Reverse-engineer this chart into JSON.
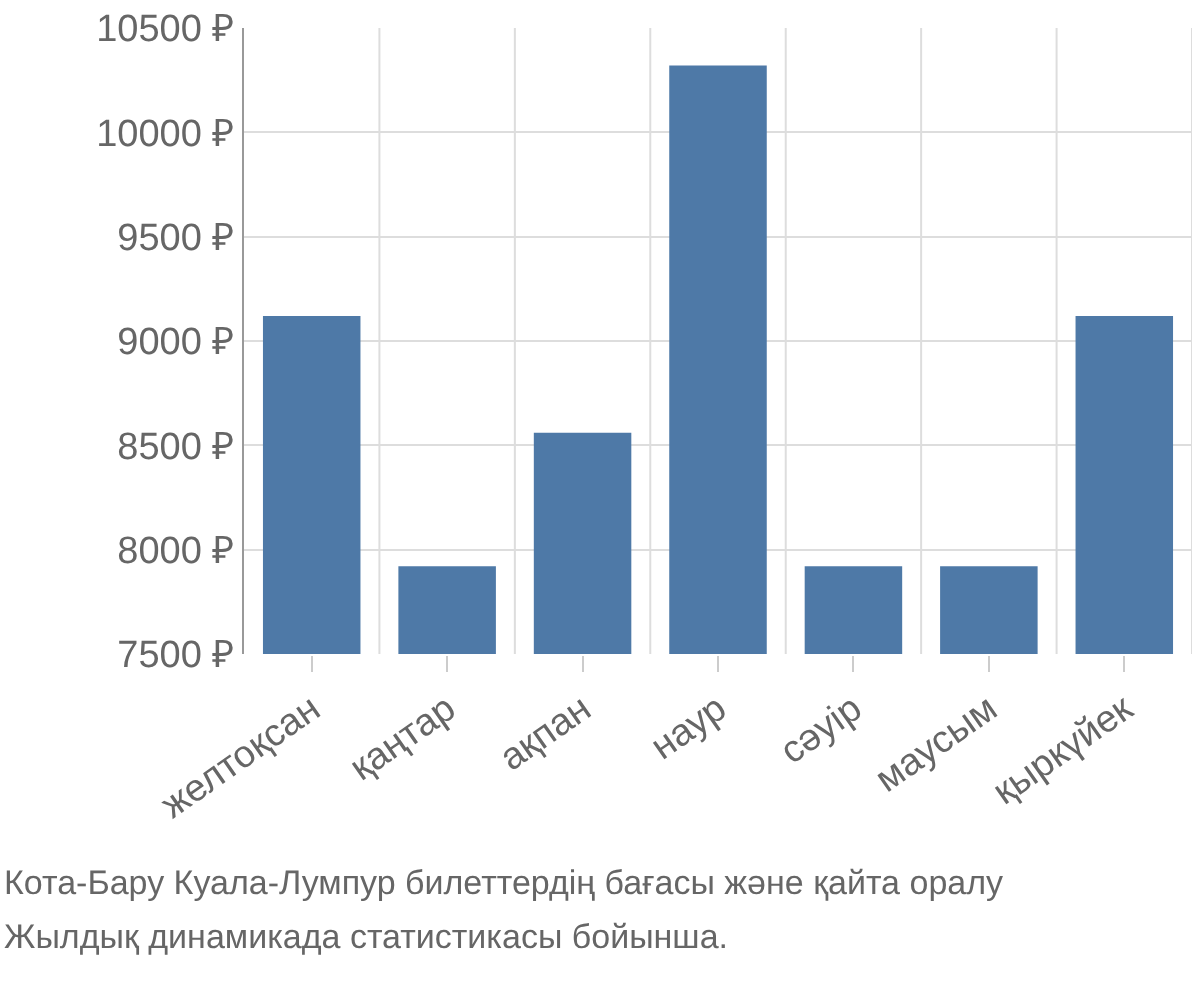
{
  "chart_data": {
    "type": "bar",
    "categories": [
      "желтоқсан",
      "қаңтар",
      "ақпан",
      "наур",
      "сәуір",
      "маусым",
      "қыркүйек"
    ],
    "values": [
      9120,
      7920,
      8560,
      10320,
      7920,
      7920,
      9120
    ],
    "color": "#4e79a7",
    "ylim": [
      7500,
      10500
    ],
    "yticks": [
      {
        "value": 7500,
        "label": "7500 ₽"
      },
      {
        "value": 8000,
        "label": "8000 ₽"
      },
      {
        "value": 8500,
        "label": "8500 ₽"
      },
      {
        "value": 9000,
        "label": "9000 ₽"
      },
      {
        "value": 9500,
        "label": "9500 ₽"
      },
      {
        "value": 10000,
        "label": "10000 ₽"
      },
      {
        "value": 10500,
        "label": "10500 ₽"
      }
    ],
    "grid": true,
    "annotations": [
      "Кота-Бару Куала-Лумпур билеттердің бағасы және қайта оралу",
      "Жылдық динамикада статистикасы бойынша."
    ]
  }
}
